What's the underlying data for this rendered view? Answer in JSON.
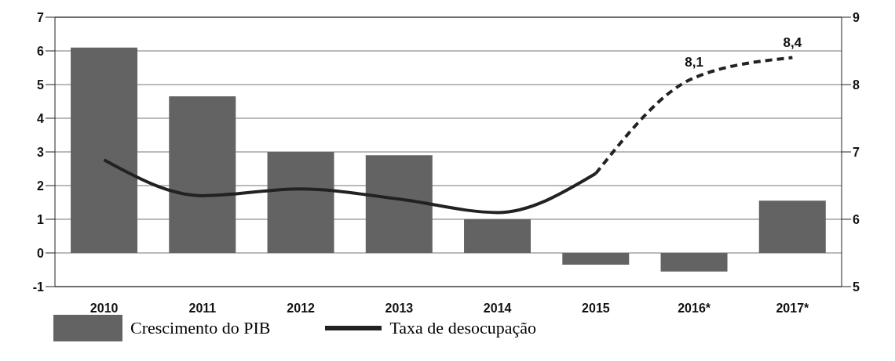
{
  "chart_data": {
    "type": "bar",
    "categories": [
      "2010",
      "2011",
      "2012",
      "2013",
      "2014",
      "2015",
      "2016*",
      "2017*"
    ],
    "series": [
      {
        "name": "Crescimento do PIB",
        "color": "#636363",
        "values": [
          6.1,
          4.65,
          3.0,
          2.9,
          1.0,
          -0.35,
          -0.55,
          1.55
        ]
      },
      {
        "type": "line",
        "name": "Taxa de desocupação",
        "color": "#222222",
        "axis": "y2",
        "line_style": "solid",
        "values": [
          6.88,
          6.35,
          6.45,
          6.3,
          6.1,
          6.68,
          null,
          null
        ]
      },
      {
        "type": "line",
        "color": "#222222",
        "axis": "y2",
        "line_style": "dashed",
        "values": [
          null,
          null,
          null,
          null,
          null,
          6.68,
          8.1,
          8.4
        ],
        "value_labels": [
          null,
          null,
          null,
          null,
          null,
          null,
          "8,1",
          "8,4"
        ]
      }
    ],
    "ylim": [
      -1,
      7
    ],
    "yticks": [
      -1,
      0,
      1,
      2,
      3,
      4,
      5,
      6,
      7
    ],
    "y2lim": [
      5,
      9
    ],
    "y2ticks": [
      5,
      6,
      7,
      8,
      9
    ],
    "grid": "y",
    "legend": "bottom",
    "marker": "none"
  }
}
